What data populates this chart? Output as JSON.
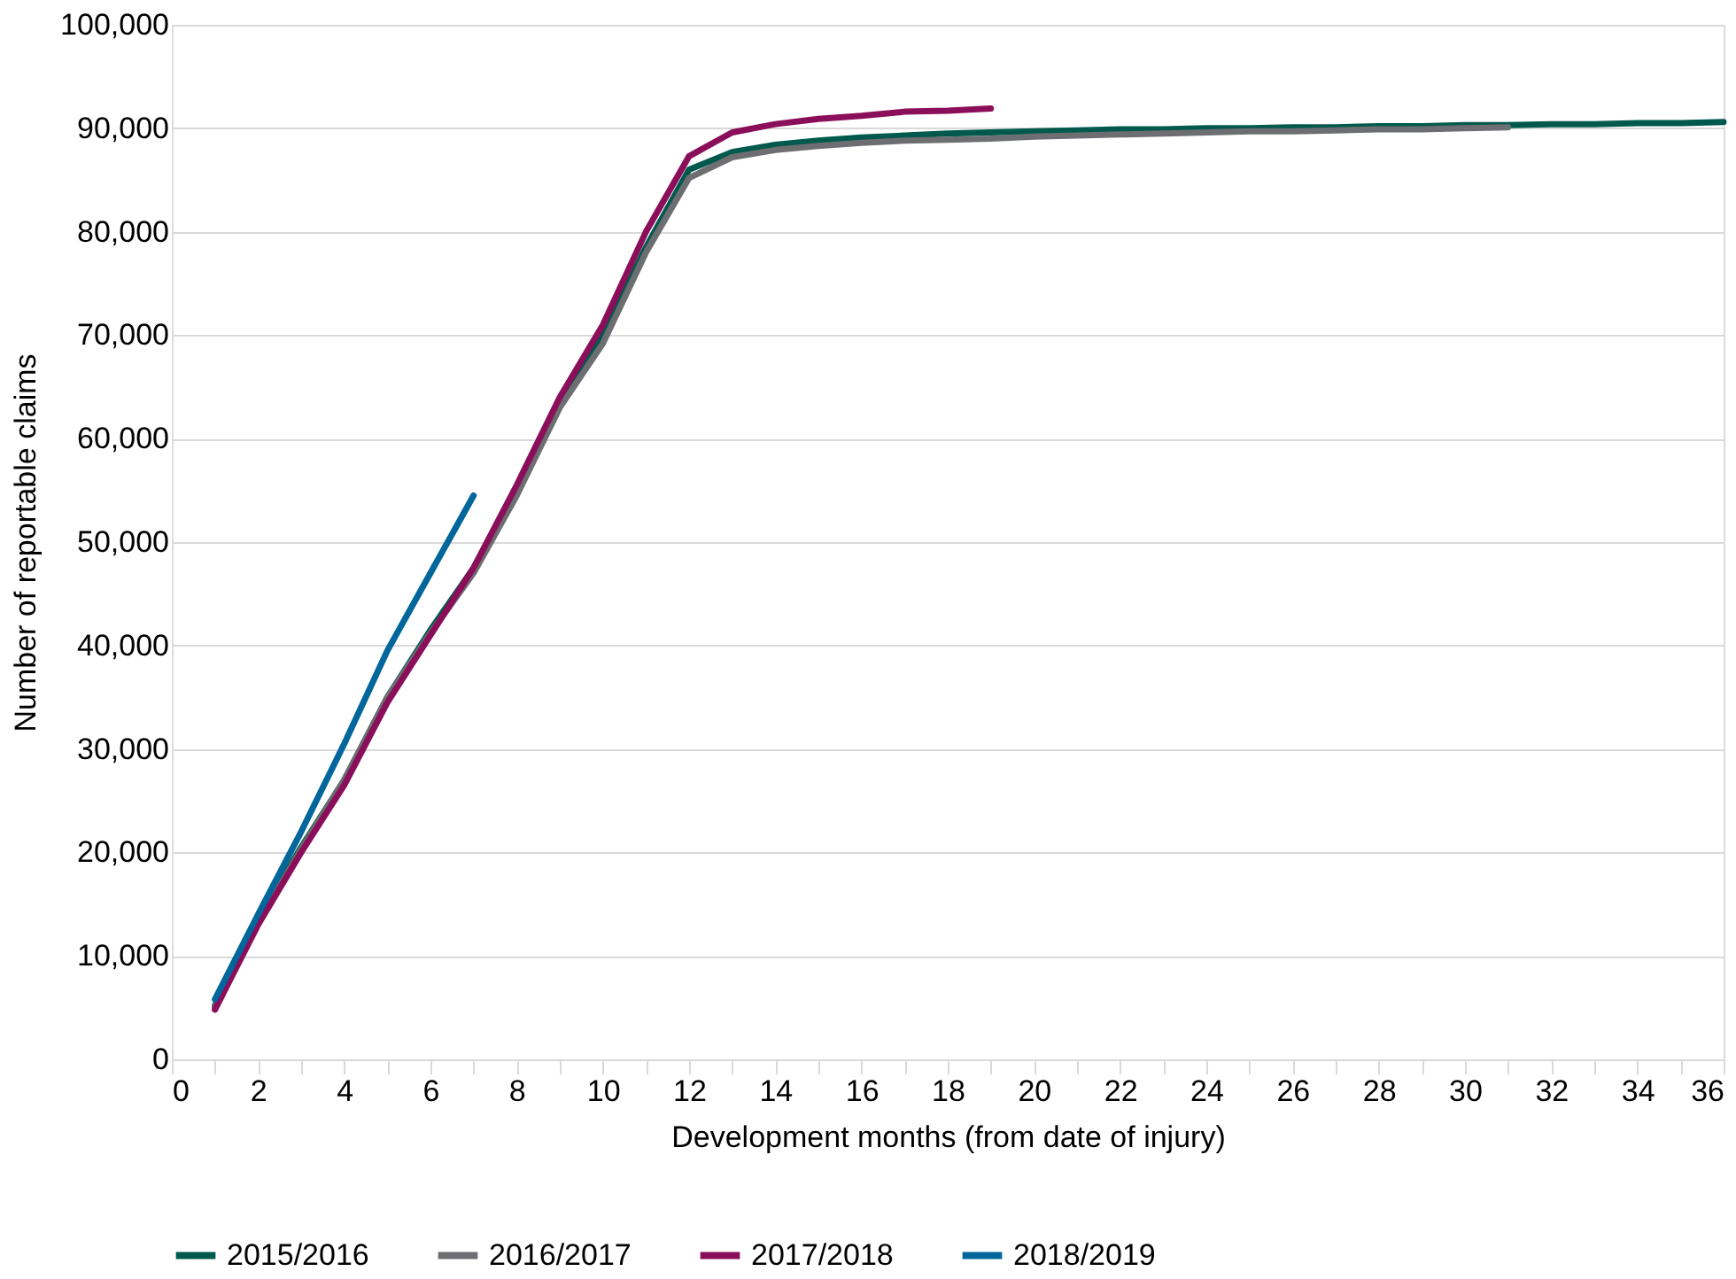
{
  "chart_data": {
    "type": "line",
    "xlabel": "Development months (from date of injury)",
    "ylabel": "Number of reportable claims",
    "xlim": [
      0,
      36
    ],
    "ylim": [
      0,
      100000
    ],
    "xticks": [
      0,
      {
        "value": 1,
        "label": null
      },
      2,
      {
        "value": 3,
        "label": null
      },
      4,
      {
        "value": 5,
        "label": null
      },
      6,
      {
        "value": 7,
        "label": null
      },
      8,
      {
        "value": 9,
        "label": null
      },
      10,
      {
        "value": 11,
        "label": null
      },
      12,
      {
        "value": 13,
        "label": null
      },
      14,
      {
        "value": 15,
        "label": null
      },
      16,
      {
        "value": 17,
        "label": null
      },
      18,
      {
        "value": 19,
        "label": null
      },
      20,
      {
        "value": 21,
        "label": null
      },
      22,
      {
        "value": 23,
        "label": null
      },
      24,
      {
        "value": 25,
        "label": null
      },
      26,
      {
        "value": 27,
        "label": null
      },
      28,
      {
        "value": 29,
        "label": null
      },
      30,
      {
        "value": 31,
        "label": null
      },
      32,
      {
        "value": 33,
        "label": null
      },
      34,
      {
        "value": 35,
        "label": null
      },
      36
    ],
    "yticks": [
      {
        "value": 0,
        "label": "0"
      },
      {
        "value": 10000,
        "label": "10,000"
      },
      {
        "value": 20000,
        "label": "20,000"
      },
      {
        "value": 30000,
        "label": "30,000"
      },
      {
        "value": 40000,
        "label": "40,000"
      },
      {
        "value": 50000,
        "label": "50,000"
      },
      {
        "value": 60000,
        "label": "60,000"
      },
      {
        "value": 70000,
        "label": "70,000"
      },
      {
        "value": 80000,
        "label": "80,000"
      },
      {
        "value": 90000,
        "label": "90,000"
      },
      {
        "value": 100000,
        "label": "100,000"
      }
    ],
    "grid": "y",
    "legend": "bottom",
    "marker": "none",
    "line_style": "solid",
    "series": [
      {
        "name": "2015/2016",
        "color": "#00594c",
        "x": [
          1,
          2,
          3,
          4,
          5,
          6,
          7,
          8,
          9,
          10,
          11,
          12,
          13,
          14,
          15,
          16,
          17,
          18,
          19,
          20,
          21,
          22,
          23,
          24,
          25,
          26,
          27,
          28,
          29,
          30,
          31,
          32,
          33,
          34,
          35,
          36
        ],
        "values": [
          5200,
          13500,
          20500,
          27000,
          35000,
          41500,
          47500,
          55000,
          63500,
          70000,
          78500,
          86000,
          87700,
          88400,
          88800,
          89100,
          89300,
          89500,
          89600,
          89700,
          89800,
          89900,
          89900,
          90000,
          90000,
          90100,
          90100,
          90200,
          90200,
          90300,
          90300,
          90400,
          90400,
          90500,
          90500,
          90600
        ]
      },
      {
        "name": "2016/2017",
        "color": "#6d6e71",
        "x": [
          1,
          2,
          3,
          4,
          5,
          6,
          7,
          8,
          9,
          10,
          11,
          12,
          13,
          14,
          15,
          16,
          17,
          18,
          19,
          20,
          21,
          22,
          23,
          24,
          25,
          26,
          27,
          28,
          29,
          30,
          31
        ],
        "values": [
          5000,
          13200,
          20300,
          27000,
          35000,
          41200,
          47000,
          54500,
          63000,
          69200,
          78000,
          85200,
          87200,
          87900,
          88300,
          88600,
          88800,
          88900,
          89000,
          89200,
          89300,
          89400,
          89500,
          89600,
          89700,
          89700,
          89800,
          89900,
          89900,
          90000,
          90100
        ]
      },
      {
        "name": "2017/2018",
        "color": "#8b0e5a",
        "x": [
          1,
          2,
          3,
          4,
          5,
          6,
          7,
          8,
          9,
          10,
          11,
          12,
          13,
          14,
          15,
          16,
          17,
          18,
          19
        ],
        "values": [
          4800,
          13000,
          20000,
          26500,
          34500,
          41000,
          47500,
          55500,
          64000,
          71000,
          80000,
          87300,
          89600,
          90400,
          90900,
          91200,
          91600,
          91700,
          91900
        ]
      },
      {
        "name": "2018/2019",
        "color": "#00669c",
        "x": [
          1,
          2,
          3,
          4,
          5,
          6,
          7
        ],
        "values": [
          5800,
          14000,
          22000,
          30500,
          39500,
          47000,
          54500
        ]
      }
    ]
  }
}
